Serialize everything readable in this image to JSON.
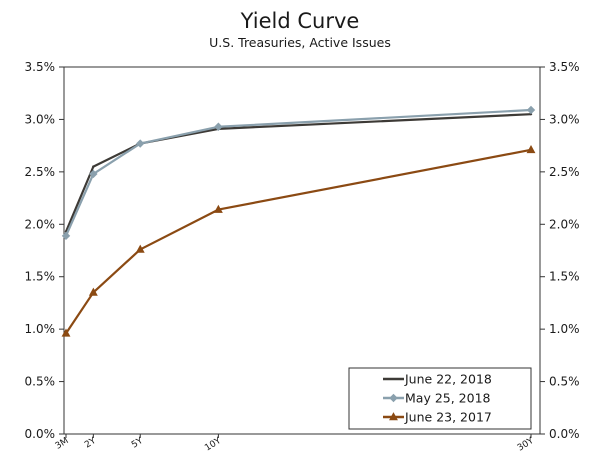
{
  "chart_data": {
    "type": "line",
    "title": "Yield Curve",
    "subtitle": "U.S. Treasuries, Active Issues",
    "x_categories": [
      "3M",
      "2Y",
      "5Y",
      "10Y",
      "30Y"
    ],
    "x_years": [
      0.25,
      2,
      5,
      10,
      30
    ],
    "ylim": [
      0,
      3.5
    ],
    "y_ticks": [
      "0.0%",
      "0.5%",
      "1.0%",
      "1.5%",
      "2.0%",
      "2.5%",
      "3.0%",
      "3.5%"
    ],
    "y_tick_values": [
      0,
      0.5,
      1.0,
      1.5,
      2.0,
      2.5,
      3.0,
      3.5
    ],
    "grid": false,
    "dual_y_axis": true,
    "legend_position": "bottom-right",
    "series": [
      {
        "name": "June 22, 2018",
        "color": "#3d3a36",
        "marker": "none",
        "values": [
          1.93,
          2.55,
          2.77,
          2.91,
          3.05
        ]
      },
      {
        "name": "May 25, 2018",
        "color": "#8aa0ad",
        "marker": "diamond",
        "values": [
          1.89,
          2.48,
          2.77,
          2.93,
          3.09
        ]
      },
      {
        "name": "June 23, 2017",
        "color": "#8b4a13",
        "marker": "triangle",
        "values": [
          0.96,
          1.35,
          1.76,
          2.14,
          2.71
        ]
      }
    ]
  }
}
